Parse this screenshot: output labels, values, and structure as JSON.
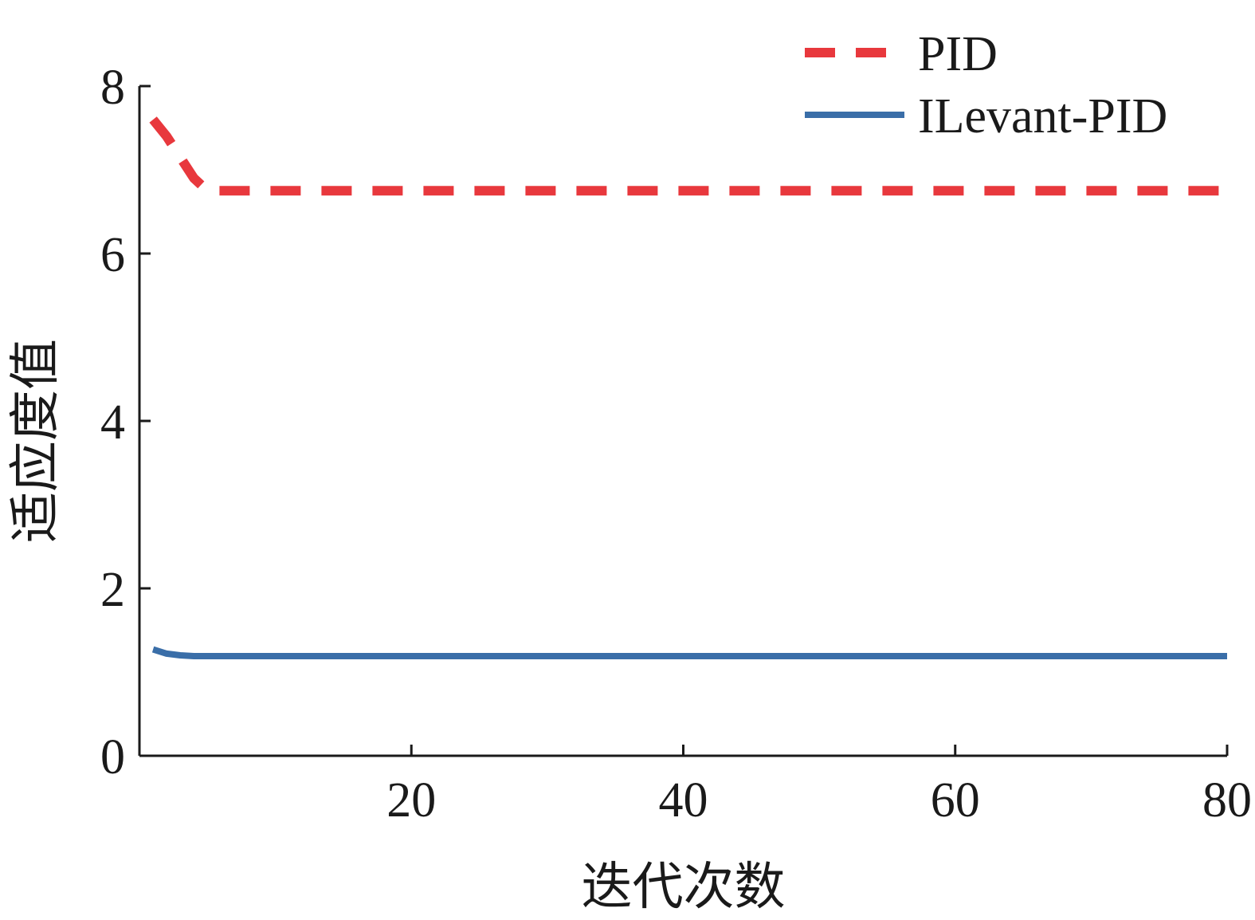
{
  "chart_data": {
    "type": "line",
    "title": "",
    "xlabel": "迭代次数",
    "ylabel": "适应度值",
    "xlim": [
      0,
      80
    ],
    "ylim": [
      0,
      8
    ],
    "x_ticks": [
      20,
      40,
      60,
      80
    ],
    "y_ticks": [
      0,
      2,
      4,
      6,
      8
    ],
    "grid": false,
    "legend_position": "top-right",
    "series": [
      {
        "name": "PID",
        "color": "#e8383d",
        "style": "dashed",
        "x": [
          1,
          2,
          3,
          4,
          5,
          6,
          10,
          20,
          30,
          40,
          50,
          60,
          70,
          80
        ],
        "y": [
          7.6,
          7.4,
          7.15,
          6.9,
          6.75,
          6.75,
          6.75,
          6.75,
          6.75,
          6.75,
          6.75,
          6.75,
          6.75,
          6.75
        ]
      },
      {
        "name": "ILevant-PID",
        "color": "#3a6ea8",
        "style": "solid",
        "x": [
          1,
          2,
          3,
          4,
          5,
          10,
          20,
          30,
          40,
          50,
          60,
          70,
          80
        ],
        "y": [
          1.27,
          1.22,
          1.2,
          1.19,
          1.19,
          1.19,
          1.19,
          1.19,
          1.19,
          1.19,
          1.19,
          1.19,
          1.19
        ]
      }
    ]
  }
}
